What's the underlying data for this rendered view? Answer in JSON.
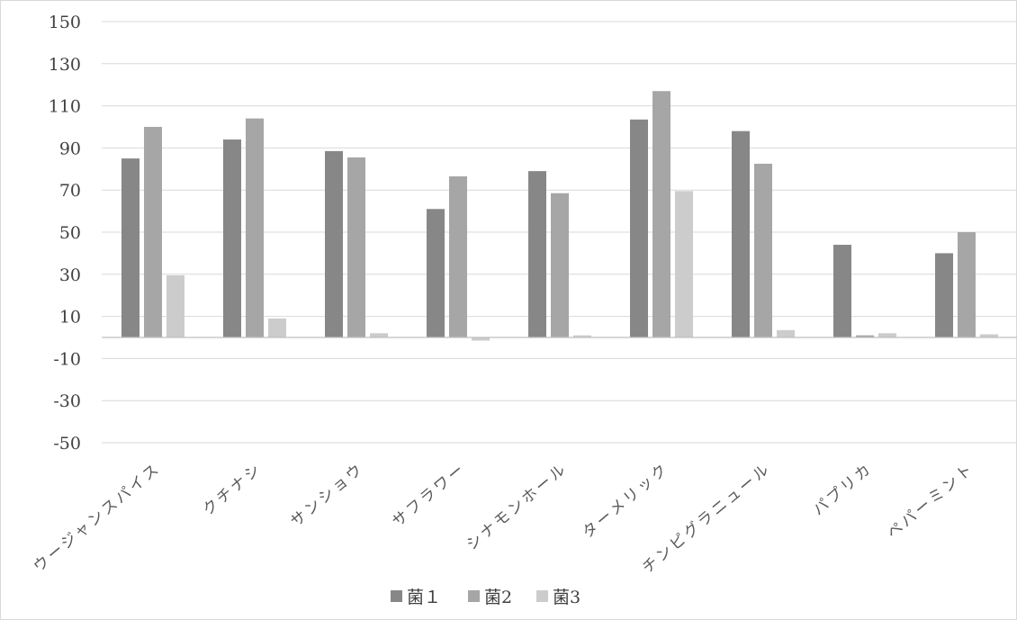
{
  "chart_data": {
    "type": "bar",
    "categories": [
      "ウージャンスパイス",
      "クチナシ",
      "サンショウ",
      "サフラワー",
      "シナモンホール",
      "ターメリック",
      "チンピグラニュール",
      "パプリカ",
      "ペパーミント"
    ],
    "series": [
      {
        "name": "菌１",
        "color": "#878787",
        "values": [
          85,
          94,
          88.5,
          61,
          79,
          103.5,
          98,
          44,
          40
        ]
      },
      {
        "name": "菌2",
        "color": "#a6a6a6",
        "values": [
          100,
          104,
          85.5,
          76.5,
          68.5,
          117,
          82.5,
          1,
          50
        ]
      },
      {
        "name": "菌3",
        "color": "#cccccc",
        "values": [
          29.5,
          9,
          2,
          -1.5,
          1,
          69.5,
          3.5,
          2,
          1.5
        ]
      }
    ],
    "yticks": [
      150,
      130,
      110,
      90,
      70,
      50,
      30,
      10,
      -10,
      -30,
      -50
    ],
    "ylim": [
      -50,
      150
    ],
    "grid": true,
    "legend_position": "bottom",
    "title": "",
    "xlabel": "",
    "ylabel": ""
  }
}
